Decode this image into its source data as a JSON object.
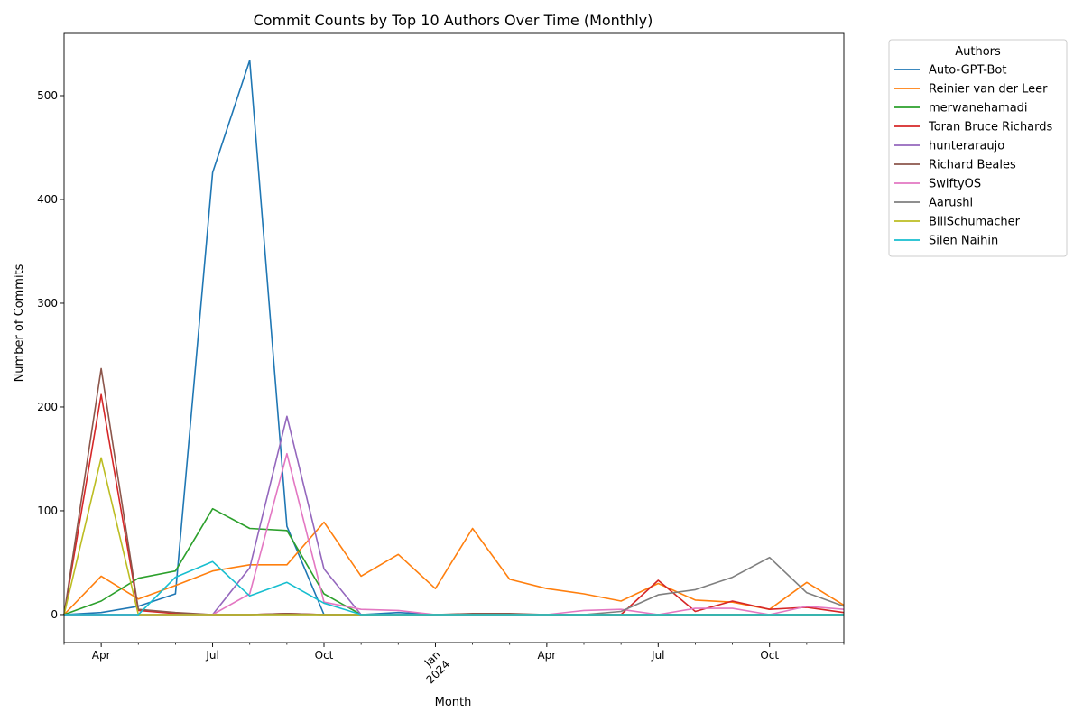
{
  "chart_data": {
    "type": "line",
    "title": "Commit Counts by Top 10 Authors Over Time (Monthly)",
    "xlabel": "Month",
    "ylabel": "Number of Commits",
    "x": [
      "2023-03",
      "2023-04",
      "2023-05",
      "2023-06",
      "2023-07",
      "2023-08",
      "2023-09",
      "2023-10",
      "2023-11",
      "2023-12",
      "2024-01",
      "2024-02",
      "2024-03",
      "2024-04",
      "2024-05",
      "2024-06",
      "2024-07",
      "2024-08",
      "2024-09",
      "2024-10",
      "2024-11",
      "2024-12"
    ],
    "ylim": [
      -27,
      560
    ],
    "y_ticks": [
      0,
      100,
      200,
      300,
      400,
      500
    ],
    "x_ticks": [
      {
        "x": "2023-04",
        "label": "Apr",
        "label2": ""
      },
      {
        "x": "2023-07",
        "label": "Jul",
        "label2": ""
      },
      {
        "x": "2023-10",
        "label": "Oct",
        "label2": ""
      },
      {
        "x": "2024-01",
        "label": "Jan",
        "label2": "2024"
      },
      {
        "x": "2024-04",
        "label": "Apr",
        "label2": ""
      },
      {
        "x": "2024-07",
        "label": "Jul",
        "label2": ""
      },
      {
        "x": "2024-10",
        "label": "Oct",
        "label2": ""
      }
    ],
    "grid": false,
    "legend": {
      "title": "Authors",
      "placement": "outside-top-right"
    },
    "series": [
      {
        "name": "Auto-GPT-Bot",
        "color": "#1f77b4",
        "values": [
          0,
          2,
          8,
          20,
          426,
          534,
          85,
          0,
          0,
          2,
          0,
          0,
          0,
          0,
          0,
          0,
          0,
          0,
          0,
          0,
          0,
          0
        ]
      },
      {
        "name": "Reinier van der Leer",
        "color": "#ff7f0e",
        "values": [
          0,
          37,
          15,
          28,
          42,
          48,
          48,
          89,
          37,
          58,
          25,
          83,
          34,
          25,
          20,
          13,
          30,
          14,
          12,
          5,
          31,
          9
        ]
      },
      {
        "name": "merwanehamadi",
        "color": "#2ca02c",
        "values": [
          0,
          13,
          35,
          42,
          102,
          83,
          81,
          20,
          0,
          0,
          0,
          0,
          0,
          0,
          0,
          0,
          0,
          0,
          0,
          0,
          0,
          0
        ]
      },
      {
        "name": "Toran Bruce Richards",
        "color": "#d62728",
        "values": [
          0,
          212,
          4,
          1,
          0,
          0,
          1,
          0,
          0,
          0,
          0,
          0,
          0,
          0,
          0,
          0,
          33,
          3,
          13,
          5,
          7,
          2
        ]
      },
      {
        "name": "hunteraraujo",
        "color": "#9467bd",
        "values": [
          0,
          0,
          0,
          0,
          0,
          45,
          191,
          44,
          0,
          0,
          0,
          0,
          0,
          0,
          0,
          0,
          0,
          0,
          0,
          0,
          0,
          0
        ]
      },
      {
        "name": "Richard Beales",
        "color": "#8c564b",
        "values": [
          0,
          237,
          5,
          2,
          0,
          0,
          1,
          0,
          0,
          0,
          0,
          1,
          1,
          0,
          0,
          0,
          0,
          0,
          0,
          0,
          0,
          0
        ]
      },
      {
        "name": "SwiftyOS",
        "color": "#e377c2",
        "values": [
          0,
          0,
          0,
          0,
          0,
          20,
          155,
          12,
          5,
          4,
          0,
          0,
          0,
          0,
          4,
          5,
          0,
          6,
          6,
          0,
          8,
          5
        ]
      },
      {
        "name": "Aarushi",
        "color": "#7f7f7f",
        "values": [
          0,
          0,
          0,
          0,
          0,
          0,
          0,
          0,
          0,
          0,
          0,
          0,
          0,
          0,
          0,
          3,
          19,
          24,
          36,
          55,
          21,
          8
        ]
      },
      {
        "name": "BillSchumacher",
        "color": "#bcbd22",
        "values": [
          0,
          151,
          0,
          0,
          0,
          0,
          0,
          0,
          0,
          0,
          0,
          0,
          0,
          0,
          0,
          0,
          0,
          0,
          0,
          0,
          0,
          0
        ]
      },
      {
        "name": "Silen Naihin",
        "color": "#17becf",
        "values": [
          0,
          0,
          0,
          36,
          51,
          18,
          31,
          11,
          0,
          0,
          0,
          0,
          0,
          0,
          0,
          0,
          0,
          0,
          0,
          0,
          0,
          0
        ]
      }
    ]
  }
}
